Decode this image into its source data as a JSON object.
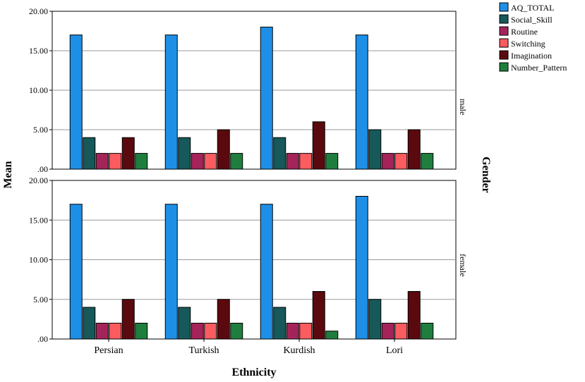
{
  "chart_data": {
    "type": "bar",
    "categories": [
      "Persian",
      "Turkish",
      "Kurdish",
      "Lori"
    ],
    "xlabel": "Ethnicity",
    "ylabel": "Mean",
    "facet_label": "Gender",
    "ylim": [
      0,
      20
    ],
    "yticks": [
      ".00",
      "5.00",
      "10.00",
      "15.00",
      "20.00"
    ],
    "legend_position": "top-right",
    "series_meta": [
      {
        "name": "AQ_TOTAL",
        "color": "#1e8fe6"
      },
      {
        "name": "Social_Skill",
        "color": "#17595a"
      },
      {
        "name": "Routine",
        "color": "#a4245a"
      },
      {
        "name": "Switching",
        "color": "#fa5c5f"
      },
      {
        "name": "Imagination",
        "color": "#5a0a0e"
      },
      {
        "name": "Number_Pattern",
        "color": "#1f7e3e"
      }
    ],
    "panels": [
      {
        "label": "male",
        "values": [
          [
            17,
            17,
            18,
            17
          ],
          [
            4,
            4,
            4,
            5
          ],
          [
            2,
            2,
            2,
            2
          ],
          [
            2,
            2,
            2,
            2
          ],
          [
            4,
            5,
            6,
            5
          ],
          [
            2,
            2,
            2,
            2
          ]
        ]
      },
      {
        "label": "female",
        "values": [
          [
            17,
            17,
            17,
            18
          ],
          [
            4,
            4,
            4,
            5
          ],
          [
            2,
            2,
            2,
            2
          ],
          [
            2,
            2,
            2,
            2
          ],
          [
            5,
            5,
            6,
            6
          ],
          [
            2,
            2,
            1,
            2
          ]
        ]
      }
    ]
  }
}
